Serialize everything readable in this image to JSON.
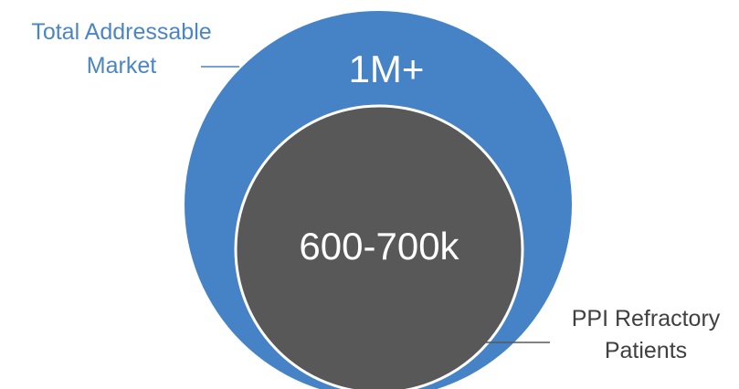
{
  "outer_circle": {
    "value": "1M+",
    "label_line1": "Total Addressable",
    "label_line2": "Market",
    "color": "#4583C6"
  },
  "inner_circle": {
    "value": "600-700k",
    "label_line1": "PPI Refractory",
    "label_line2": "Patients",
    "color": "#585858"
  },
  "colors": {
    "outer_label_text": "#4A86C5",
    "inner_label_text": "#404040",
    "inner_value_text": "#ffffff",
    "outer_value_text": "#ffffff",
    "leader_line": "#4583C6",
    "leader_line_inner": "#585858"
  }
}
